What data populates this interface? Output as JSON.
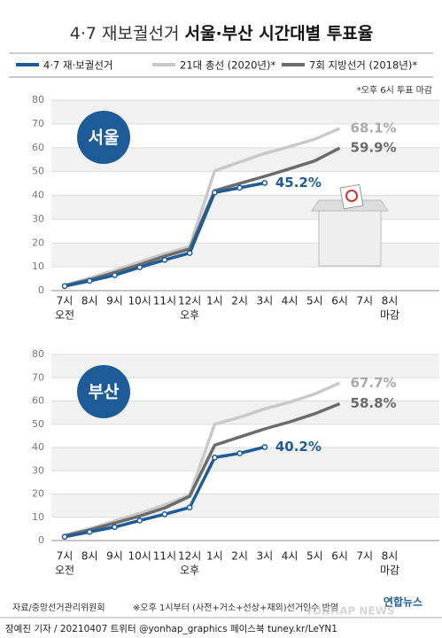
{
  "header": {
    "title": "4·7 재보궐선거",
    "title_emphasis": "서울·부산 시간대별 투표율",
    "note": "*오후 6시 투표 마감"
  },
  "chart_data": [
    {
      "type": "line",
      "label": "서울",
      "ylim": [
        0,
        80
      ],
      "yticks": [
        0,
        10,
        20,
        30,
        40,
        50,
        60,
        70,
        80
      ],
      "grid": true,
      "categories": [
        "7시",
        "8시",
        "9시",
        "10시",
        "11시",
        "12시",
        "1시",
        "2시",
        "3시",
        "4시",
        "5시",
        "6시",
        "7시",
        "8시"
      ],
      "sublabels": [
        "오전",
        null,
        null,
        null,
        null,
        "오후",
        null,
        null,
        null,
        null,
        null,
        null,
        null,
        "마감"
      ],
      "series": [
        {
          "name": "21대 총선 (2020년)*",
          "color": "#c9c9c9",
          "values": [
            2.2,
            5.3,
            8.5,
            12.0,
            15.5,
            18.5,
            50.3,
            54.0,
            57.6,
            60.5,
            63.6,
            68.1,
            null,
            null
          ],
          "value_labels": [
            null,
            null,
            null,
            null,
            null,
            null,
            null,
            null,
            null,
            null,
            null,
            "68.1%",
            null,
            null
          ]
        },
        {
          "name": "7회 지방선거 (2018년)*",
          "color": "#6b6b6b",
          "values": [
            2.1,
            4.6,
            7.6,
            10.9,
            14.5,
            17.5,
            42.0,
            45.0,
            48.0,
            51.2,
            54.5,
            59.9,
            null,
            null
          ],
          "value_labels": [
            null,
            null,
            null,
            null,
            null,
            null,
            null,
            null,
            null,
            null,
            null,
            "59.9%",
            null,
            null
          ]
        },
        {
          "name": "4·7 재·보궐선거",
          "color": "#1d5c99",
          "values": [
            1.9,
            4.1,
            6.5,
            9.8,
            12.9,
            15.8,
            41.2,
            43.2,
            45.2,
            null,
            null,
            null,
            null,
            null
          ],
          "value_labels": [
            null,
            null,
            null,
            null,
            null,
            null,
            null,
            null,
            "45.2%",
            null,
            null,
            null,
            null,
            null
          ]
        }
      ]
    },
    {
      "type": "line",
      "label": "부산",
      "ylim": [
        0,
        80
      ],
      "yticks": [
        0,
        10,
        20,
        30,
        40,
        50,
        60,
        70,
        80
      ],
      "grid": true,
      "categories": [
        "7시",
        "8시",
        "9시",
        "10시",
        "11시",
        "12시",
        "1시",
        "2시",
        "3시",
        "4시",
        "5시",
        "6시",
        "7시",
        "8시"
      ],
      "sublabels": [
        "오전",
        null,
        null,
        null,
        null,
        "오후",
        null,
        null,
        null,
        null,
        null,
        null,
        null,
        "마감"
      ],
      "series": [
        {
          "name": "21대 총선 (2020년)*",
          "color": "#c9c9c9",
          "values": [
            2.3,
            5.1,
            8.4,
            11.7,
            15.3,
            19.5,
            50.0,
            53.0,
            56.6,
            59.5,
            63.0,
            67.7,
            null,
            null
          ],
          "value_labels": [
            null,
            null,
            null,
            null,
            null,
            null,
            null,
            null,
            null,
            null,
            null,
            "67.7%",
            null,
            null
          ]
        },
        {
          "name": "7회 지방선거 (2018년)*",
          "color": "#6b6b6b",
          "values": [
            2.0,
            4.6,
            7.5,
            10.5,
            14.0,
            19.0,
            41.0,
            44.5,
            48.0,
            51.0,
            54.5,
            58.8,
            null,
            null
          ],
          "value_labels": [
            null,
            null,
            null,
            null,
            null,
            null,
            null,
            null,
            null,
            null,
            null,
            "58.8%",
            null,
            null
          ]
        },
        {
          "name": "4·7 재·보궐선거",
          "color": "#1d5c99",
          "values": [
            1.6,
            3.7,
            5.8,
            8.6,
            11.3,
            14.2,
            35.7,
            37.5,
            40.2,
            null,
            null,
            null,
            null,
            null
          ],
          "value_labels": [
            null,
            null,
            null,
            null,
            null,
            null,
            null,
            null,
            "40.2%",
            null,
            null,
            null,
            null,
            null
          ]
        }
      ]
    }
  ],
  "footer": {
    "source": "자료/중앙선거관리위원회",
    "remark": "※오후 1시부터 (사전+거소+선상+재외)선거인수 반영",
    "byline": "장예진 기자 / 20210407 트위터 @yonhap_graphics 페이스북 tuney.kr/LeYN1",
    "logo": "연합뉴스",
    "logo_en": "YONHAP NEWS"
  }
}
